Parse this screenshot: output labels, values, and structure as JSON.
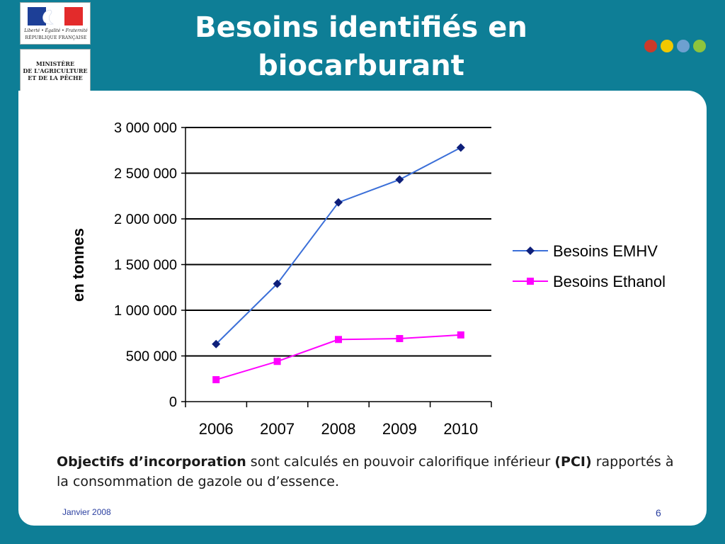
{
  "logo": {
    "motto_line1": "Liberté • Égalité • Fraternité",
    "motto_line2": "RÉPUBLIQUE FRANÇAISE",
    "ministry_lines": [
      "MINISTÈRE",
      "DE L'AGRICULTURE",
      "ET DE LA PÊCHE"
    ],
    "flag_colors": [
      "#1d3f97",
      "#ffffff",
      "#e32b2b"
    ]
  },
  "title": {
    "line1": "Besoins identifiés en",
    "line2": "biocarburant"
  },
  "dots": [
    "#cc3a2a",
    "#f0c800",
    "#6ea0d0",
    "#8ec43c"
  ],
  "chart_data": {
    "type": "line",
    "title": "",
    "xlabel": "",
    "ylabel": "en tonnes",
    "categories": [
      "2006",
      "2007",
      "2008",
      "2009",
      "2010"
    ],
    "ylim": [
      0,
      3000000
    ],
    "yticks": [
      0,
      500000,
      1000000,
      1500000,
      2000000,
      2500000,
      3000000
    ],
    "ytick_labels": [
      "0",
      "500 000",
      "1 000 000",
      "1 500 000",
      "2 000 000",
      "2 500 000",
      "3 000 000"
    ],
    "grid": true,
    "legend_position": "right",
    "series": [
      {
        "name": "Besoins EMHV",
        "values": [
          630000,
          1290000,
          2180000,
          2430000,
          2780000
        ],
        "color": "#3b6fd8",
        "marker_color": "#0e1f7a",
        "marker": "diamond"
      },
      {
        "name": "Besoins Ethanol",
        "values": [
          240000,
          440000,
          680000,
          690000,
          730000
        ],
        "color": "#ff00ff",
        "marker_color": "#ff00ff",
        "marker": "square"
      }
    ]
  },
  "caption": {
    "bold1": "Objectifs d’incorporation",
    "text1": " sont calculés en pouvoir calorifique inférieur ",
    "bold2": "(PCI)",
    "text2": " rapportés à la consommation de gazole ou d’essence."
  },
  "footer": {
    "date": "Janvier 2008",
    "page": "6"
  }
}
